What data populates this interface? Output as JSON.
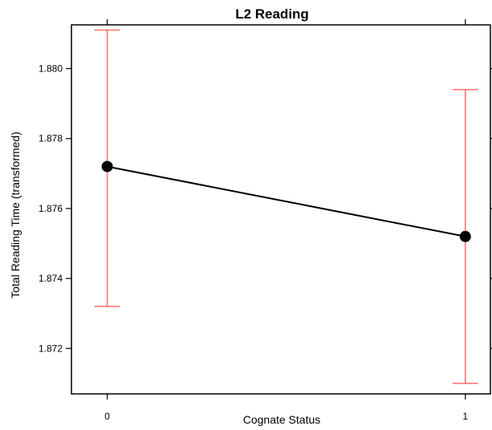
{
  "chart_data": {
    "type": "line",
    "title": "L2 Reading",
    "xlabel": "Cognate Status",
    "ylabel": "Total Reading Time (transformed)",
    "categories": [
      "0",
      "1"
    ],
    "x": [
      0,
      1
    ],
    "series": [
      {
        "values": [
          1.8772,
          1.8752
        ],
        "lower": [
          1.8732,
          1.871
        ],
        "upper": [
          1.8811,
          1.8794
        ]
      }
    ],
    "xlim": [
      -0.1,
      1.07
    ],
    "ylim": [
      1.8707,
      1.88125
    ],
    "yticks": [
      1.872,
      1.874,
      1.876,
      1.878,
      1.88
    ],
    "ytick_labels": [
      "1.872",
      "1.874",
      "1.876",
      "1.878",
      "1.880"
    ],
    "grid": false,
    "colors": {
      "line": "#000000",
      "point": "#000000",
      "error_bar": "#ff6b6b",
      "axis": "#000000"
    }
  }
}
